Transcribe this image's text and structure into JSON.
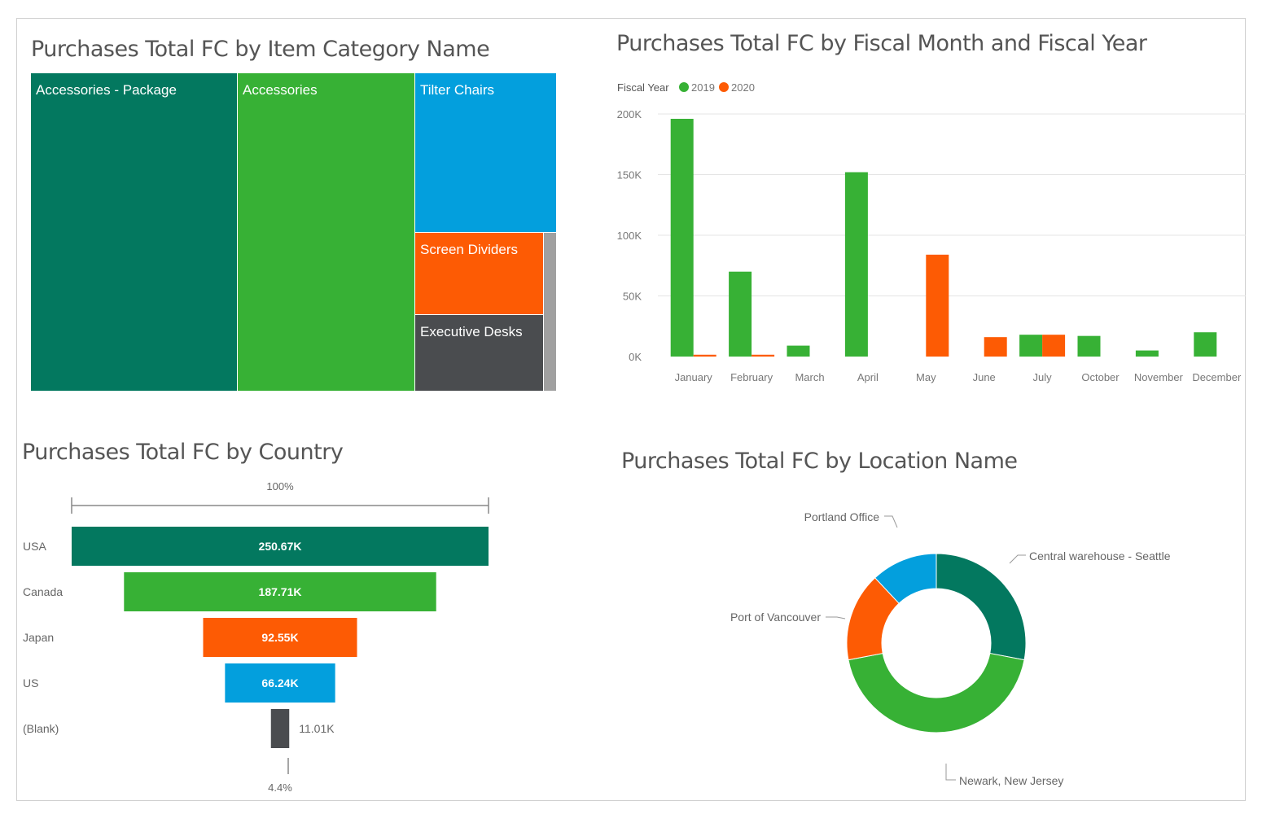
{
  "colors": {
    "dark_teal": "#03785f",
    "green": "#37b135",
    "blue": "#039fdd",
    "orange": "#fd5b04",
    "dark_gray": "#4a4c4f",
    "gray": "#a0a0a0",
    "year_2019": "#37b135",
    "year_2020": "#fd5b04"
  },
  "chart_data": [
    {
      "type": "treemap",
      "title": "Purchases Total FC by Item Category Name",
      "items": [
        {
          "name": "Accessories - Package",
          "color": "#03785f"
        },
        {
          "name": "Accessories",
          "color": "#37b135"
        },
        {
          "name": "Tilter Chairs",
          "color": "#039fdd"
        },
        {
          "name": "Screen Dividers",
          "color": "#fd5b04"
        },
        {
          "name": "Executive Desks",
          "color": "#4a4c4f"
        },
        {
          "name": "",
          "color": "#a0a0a0"
        }
      ]
    },
    {
      "type": "bar",
      "title": "Purchases Total FC by Fiscal Month and Fiscal Year",
      "legend_title": "Fiscal Year",
      "legend_position": "top-left",
      "categories": [
        "January",
        "February",
        "March",
        "April",
        "May",
        "June",
        "July",
        "October",
        "November",
        "December"
      ],
      "series": [
        {
          "name": "2019",
          "color": "#37b135",
          "values": [
            196000,
            70000,
            9000,
            152000,
            null,
            null,
            18000,
            17000,
            5000,
            20000
          ]
        },
        {
          "name": "2020",
          "color": "#fd5b04",
          "values": [
            1500,
            1500,
            null,
            null,
            84000,
            16000,
            18000,
            null,
            null,
            null
          ]
        }
      ],
      "yticks": [
        "0K",
        "50K",
        "100K",
        "150K",
        "200K"
      ],
      "ylim": [
        0,
        200000
      ],
      "grid": true
    },
    {
      "type": "funnel",
      "title": "Purchases Total FC by Country",
      "top_label": "100%",
      "bottom_label": "4.4%",
      "categories": [
        "USA",
        "Canada",
        "Japan",
        "US",
        "(Blank)"
      ],
      "values": [
        250.67,
        187.71,
        92.55,
        66.24,
        11.01
      ],
      "value_labels": [
        "250.67K",
        "187.71K",
        "92.55K",
        "66.24K",
        "11.01K"
      ],
      "colors": [
        "#03785f",
        "#37b135",
        "#fd5b04",
        "#039fdd",
        "#4a4c4f"
      ]
    },
    {
      "type": "pie",
      "donut": true,
      "title": "Purchases Total FC by Location Name",
      "labels": [
        "Central warehouse - Seattle",
        "Newark, New Jersey",
        "Port of Vancouver",
        "Portland Office"
      ],
      "values": [
        28,
        44,
        16,
        12
      ],
      "colors": [
        "#03785f",
        "#37b135",
        "#fd5b04",
        "#039fdd"
      ]
    }
  ]
}
